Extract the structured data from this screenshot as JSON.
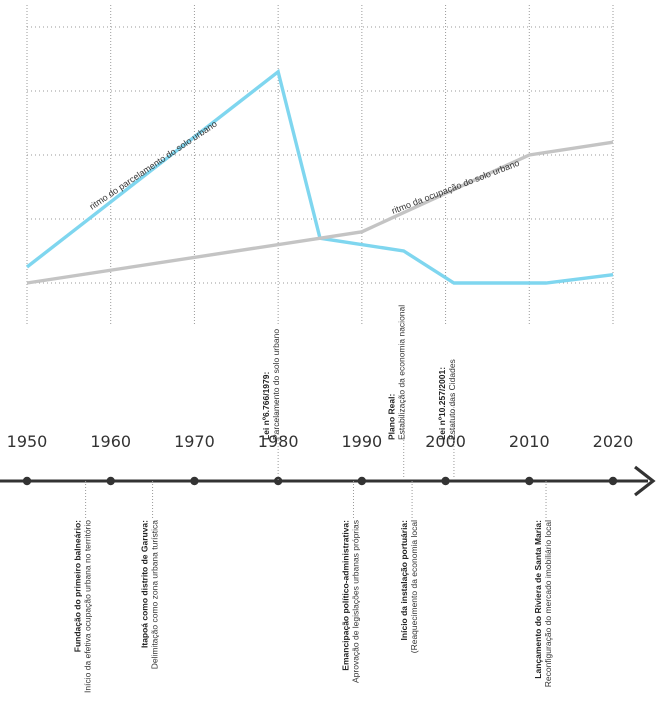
{
  "chart_data": {
    "type": "line",
    "x": [
      1950,
      1960,
      1970,
      1980,
      1990,
      2000,
      2010,
      2020
    ],
    "series": [
      {
        "name": "ritmo do parcelamento do solo urbano",
        "color": "#7fd6ef",
        "points": [
          [
            1950,
            0.25
          ],
          [
            1980,
            3.3
          ],
          [
            1985,
            0.7
          ],
          [
            1995,
            0.5
          ],
          [
            2001,
            0.0
          ],
          [
            2012,
            0.0
          ],
          [
            2020,
            0.13
          ]
        ]
      },
      {
        "name": "ritmo da ocupação do solo urbano",
        "color": "#c4c4c4",
        "points": [
          [
            1950,
            0.0
          ],
          [
            1990,
            0.8
          ],
          [
            2010,
            2.0
          ],
          [
            2020,
            2.2
          ]
        ]
      }
    ],
    "xlim": [
      1950,
      2020
    ],
    "ylim": [
      0,
      4
    ],
    "grid": true
  },
  "timeline": {
    "years": [
      "1950",
      "1960",
      "1970",
      "1980",
      "1990",
      "2000",
      "2010",
      "2020"
    ],
    "line_color": "#333333",
    "events_above": [
      {
        "year": 1980,
        "title": "Lei nº6.766/1979:",
        "subtitle": "Parcelamento do solo urbano"
      },
      {
        "year": 1995,
        "title": "Plano Real:",
        "subtitle": "Estabilização da economia nacional"
      },
      {
        "year": 2001,
        "title": "Lei nº10.257/2001:",
        "subtitle": "Estatuto das Cidades"
      }
    ],
    "events_below": [
      {
        "year": 1957,
        "title": "Fundação do primeiro balneário:",
        "subtitle": "Início da efetiva ocupação urbana no território"
      },
      {
        "year": 1965,
        "title": "Itapoá como distrito de Garuva:",
        "subtitle": "Delimitação como zona urbana turística"
      },
      {
        "year": 1989,
        "title": "Emancipação político-administrativa:",
        "subtitle": "Aprovação de legislações urbanas próprias"
      },
      {
        "year": 1996,
        "title": "Início da instalação portuária:",
        "subtitle": "(Reaquecimento da economia local"
      },
      {
        "year": 2012,
        "title": "Lançamento do Riviera de Santa Maria:",
        "subtitle": "Reconfiguração do mercado imobiliário local"
      }
    ]
  }
}
